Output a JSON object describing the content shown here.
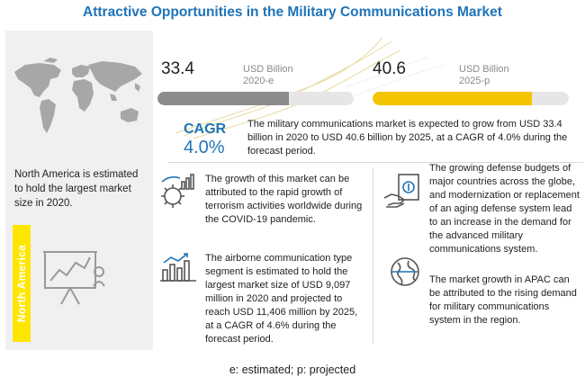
{
  "title": "Attractive Opportunities in the Military Communications Market",
  "colors": {
    "title": "#1f74b8",
    "bar_2020": "#8c8c8c",
    "bar_2025": "#f5c400",
    "highlight": "#ffe600"
  },
  "left_panel": {
    "region_text": "North America is estimated to hold the largest market size in 2020.",
    "region_badge": "North America"
  },
  "market_2020": {
    "value": "33.4",
    "unit": "USD Billion",
    "year": "2020-e"
  },
  "market_2025": {
    "value": "40.6",
    "unit": "USD Billion",
    "year": "2025-p"
  },
  "cagr": {
    "label": "CAGR",
    "value": "4.0%",
    "text": "The military communications market is expected to grow from USD 33.4 billion in 2020 to USD 40.6 billion by 2025, at a CAGR of 4.0% during the forecast period."
  },
  "points": [
    {
      "icon": "virus-chart-icon",
      "text": "The growth of this market can be attributed to the rapid growth of terrorism activities worldwide during the COVID-19 pandemic."
    },
    {
      "icon": "airborne-chart-icon",
      "text": "The airborne communication type segment is estimated to hold the largest market size of USD 9,097 million in 2020 and projected to reach USD 11,406 million by 2025, at a CAGR of 4.6% during the forecast period."
    },
    {
      "icon": "defense-budget-icon",
      "text": "The growing defense budgets of major countries across the globe, and modernization or replacement of an aging defense system lead to an increase in the demand for the advanced military communications system."
    },
    {
      "icon": "globe-icon",
      "text": "The market growth in APAC can be attributed to the rising demand for military communications system in the region."
    }
  ],
  "footnote": "e: estimated; p: projected",
  "chart_data": {
    "type": "bar",
    "categories": [
      "2020-e",
      "2025-p"
    ],
    "values": [
      33.4,
      40.6
    ],
    "unit": "USD Billion",
    "ylim": [
      0,
      50
    ],
    "cagr": "4.0%"
  }
}
